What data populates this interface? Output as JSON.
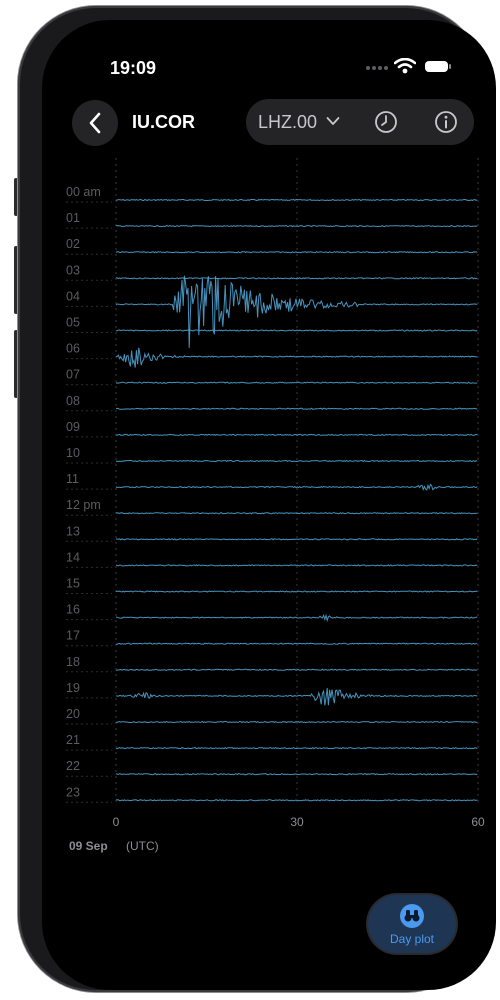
{
  "status_bar": {
    "time": "19:09"
  },
  "header": {
    "title": "IU.COR",
    "channel": "LHZ.00"
  },
  "icons": {
    "back": "chevron-left-icon",
    "dropdown": "chevron-down-icon",
    "history": "clock-icon",
    "info": "info-icon",
    "dayplot": "binoculars-icon"
  },
  "chart_data": {
    "type": "line",
    "title": "",
    "x_ticks": [
      "0",
      "30",
      "60"
    ],
    "xlim": [
      0,
      60
    ],
    "xlabel": "",
    "row_labels": [
      "00 am",
      "01",
      "02",
      "03",
      "04",
      "05",
      "06",
      "07",
      "08",
      "09",
      "10",
      "11",
      "12 pm",
      "13",
      "14",
      "15",
      "16",
      "17",
      "18",
      "19",
      "20",
      "21",
      "22",
      "23"
    ],
    "date": "09 Sep",
    "timezone": "(UTC)",
    "events": [
      {
        "hour": "04",
        "start_min": 9,
        "peak_min": 12,
        "end_min": 40,
        "amplitude": "large"
      },
      {
        "hour": "06",
        "start_min": 0,
        "peak_min": 3,
        "end_min": 12,
        "amplitude": "medium"
      },
      {
        "hour": "11",
        "start_min": 49,
        "peak_min": 52,
        "end_min": 56,
        "amplitude": "small"
      },
      {
        "hour": "16",
        "start_min": 33,
        "peak_min": 35,
        "end_min": 37,
        "amplitude": "small"
      },
      {
        "hour": "19",
        "start_min": 2,
        "peak_min": 5,
        "end_min": 9,
        "amplitude": "small"
      },
      {
        "hour": "19",
        "start_min": 32,
        "peak_min": 35,
        "end_min": 44,
        "amplitude": "medium"
      }
    ]
  },
  "colors": {
    "trace": "#4fa3d1",
    "grid": "#3a3a3e",
    "accent": "#4a9af0",
    "background": "#000000"
  },
  "buttons": {
    "day_plot": "Day plot"
  }
}
